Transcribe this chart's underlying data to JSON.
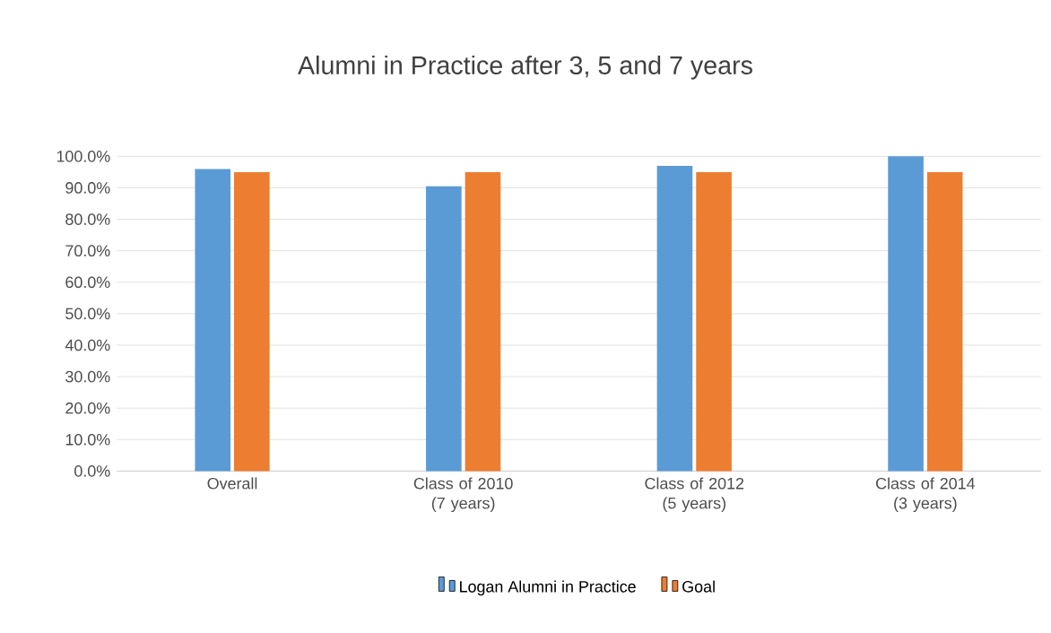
{
  "chart_data": {
    "type": "bar",
    "title": "Alumni in Practice after 3, 5 and 7 years",
    "categories": [
      "Overall",
      "Class of 2010 (7 years)",
      "Class of 2012 (5 years)",
      "Class of 2014 (3 years)"
    ],
    "series": [
      {
        "name": "Logan Alumni in Practice",
        "color": "#5b9bd5",
        "values": [
          96,
          90.5,
          97,
          100
        ]
      },
      {
        "name": "Goal",
        "color": "#ed7d31",
        "values": [
          95,
          95,
          95,
          95
        ]
      }
    ],
    "ylim": [
      0,
      100
    ],
    "yticks": [
      {
        "value": 0,
        "label": "0.0%"
      },
      {
        "value": 10,
        "label": "10.0%"
      },
      {
        "value": 20,
        "label": "20.0%"
      },
      {
        "value": 30,
        "label": "30.0%"
      },
      {
        "value": 40,
        "label": "40.0%"
      },
      {
        "value": 50,
        "label": "50.0%"
      },
      {
        "value": 60,
        "label": "60.0%"
      },
      {
        "value": 70,
        "label": "70.0%"
      },
      {
        "value": 80,
        "label": "80.0%"
      },
      {
        "value": 90,
        "label": "90.0%"
      },
      {
        "value": 100,
        "label": "100.0%"
      }
    ],
    "grid": "y",
    "legend": "bottom"
  }
}
